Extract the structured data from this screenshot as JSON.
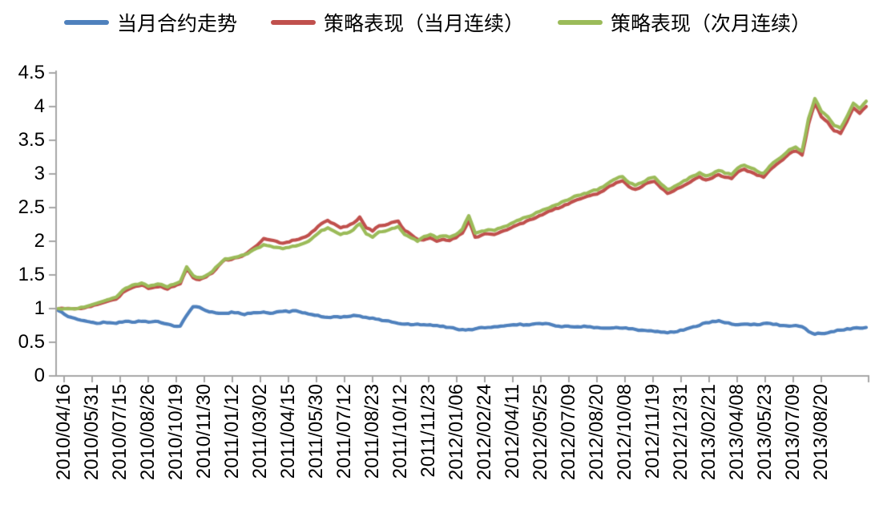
{
  "chart_data": {
    "type": "line",
    "title": "",
    "xlabel": "",
    "ylabel": "",
    "grid": false,
    "legend_position": "top",
    "axis_color": "#A6A6A6",
    "text_color": "#000000",
    "background": "#FFFFFF",
    "ylim": [
      0,
      4.5
    ],
    "y_ticks": [
      "0",
      "0.5",
      "1",
      "1.5",
      "2",
      "2.5",
      "3",
      "3.5",
      "4",
      "4.5"
    ],
    "x_tick_labels": [
      "2010/04/16",
      "2010/05/31",
      "2010/07/15",
      "2010/08/26",
      "2010/10/19",
      "2010/11/30",
      "2011/01/12",
      "2011/03/02",
      "2011/04/15",
      "2011/05/30",
      "2011/07/12",
      "2011/08/23",
      "2011/10/12",
      "2011/11/23",
      "2012/01/06",
      "2012/02/24",
      "2012/04/11",
      "2012/05/25",
      "2012/07/09",
      "2012/08/20",
      "2012/10/08",
      "2012/11/19",
      "2012/12/31",
      "2013/02/21",
      "2013/04/08",
      "2013/05/23",
      "2013/07/09",
      "2013/08/20"
    ],
    "x_range_note": "series values are sampled uniformly across the x axis from 2010/04/16 to the chart end",
    "series": [
      {
        "name": "当月合约走势",
        "color": "#4F81BD",
        "values": [
          0.97,
          0.91,
          0.87,
          0.84,
          0.82,
          0.8,
          0.78,
          0.8,
          0.79,
          0.78,
          0.8,
          0.81,
          0.8,
          0.81,
          0.8,
          0.81,
          0.79,
          0.77,
          0.74,
          0.74,
          0.9,
          1.03,
          1.02,
          0.97,
          0.95,
          0.93,
          0.93,
          0.95,
          0.94,
          0.91,
          0.93,
          0.94,
          0.95,
          0.93,
          0.95,
          0.96,
          0.95,
          0.97,
          0.94,
          0.92,
          0.9,
          0.88,
          0.87,
          0.88,
          0.87,
          0.88,
          0.9,
          0.89,
          0.87,
          0.86,
          0.84,
          0.82,
          0.8,
          0.78,
          0.77,
          0.76,
          0.77,
          0.76,
          0.76,
          0.75,
          0.74,
          0.72,
          0.7,
          0.69,
          0.69,
          0.7,
          0.72,
          0.72,
          0.73,
          0.74,
          0.75,
          0.76,
          0.77,
          0.76,
          0.77,
          0.78,
          0.78,
          0.76,
          0.74,
          0.74,
          0.73,
          0.73,
          0.74,
          0.73,
          0.72,
          0.71,
          0.71,
          0.72,
          0.71,
          0.7,
          0.69,
          0.68,
          0.67,
          0.66,
          0.65,
          0.64,
          0.65,
          0.68,
          0.7,
          0.73,
          0.75,
          0.79,
          0.81,
          0.82,
          0.79,
          0.77,
          0.76,
          0.77,
          0.76,
          0.76,
          0.78,
          0.78,
          0.77,
          0.75,
          0.74,
          0.75,
          0.73,
          0.66,
          0.62,
          0.63,
          0.64,
          0.66,
          0.68,
          0.7,
          0.71,
          0.71,
          0.72
        ]
      },
      {
        "name": "策略表现（当月连续）",
        "color": "#C0504D",
        "values": [
          1.0,
          1.0,
          1.0,
          1.0,
          1.01,
          1.03,
          1.06,
          1.09,
          1.12,
          1.14,
          1.24,
          1.29,
          1.33,
          1.35,
          1.3,
          1.32,
          1.33,
          1.29,
          1.33,
          1.37,
          1.59,
          1.46,
          1.43,
          1.47,
          1.53,
          1.64,
          1.73,
          1.73,
          1.76,
          1.8,
          1.87,
          1.94,
          2.04,
          2.02,
          2.0,
          1.97,
          1.99,
          2.02,
          2.05,
          2.09,
          2.17,
          2.26,
          2.31,
          2.26,
          2.2,
          2.22,
          2.27,
          2.36,
          2.2,
          2.15,
          2.23,
          2.24,
          2.28,
          2.3,
          2.16,
          2.1,
          2.03,
          2.02,
          2.05,
          2.0,
          2.03,
          2.01,
          2.05,
          2.12,
          2.31,
          2.06,
          2.09,
          2.11,
          2.1,
          2.14,
          2.17,
          2.22,
          2.26,
          2.3,
          2.33,
          2.38,
          2.42,
          2.46,
          2.49,
          2.54,
          2.58,
          2.62,
          2.65,
          2.68,
          2.7,
          2.75,
          2.82,
          2.87,
          2.9,
          2.81,
          2.77,
          2.81,
          2.87,
          2.89,
          2.79,
          2.71,
          2.75,
          2.8,
          2.85,
          2.91,
          2.96,
          2.91,
          2.94,
          2.99,
          2.95,
          2.93,
          3.03,
          3.07,
          3.03,
          2.98,
          2.95,
          3.06,
          3.14,
          3.21,
          3.3,
          3.34,
          3.28,
          3.74,
          4.05,
          3.85,
          3.77,
          3.64,
          3.6,
          3.78,
          3.98,
          3.9,
          4.0
        ]
      },
      {
        "name": "策略表现（次月连续）",
        "color": "#9BBB59",
        "values": [
          1.0,
          1.0,
          1.0,
          1.0,
          1.02,
          1.05,
          1.08,
          1.11,
          1.14,
          1.17,
          1.27,
          1.32,
          1.36,
          1.38,
          1.33,
          1.35,
          1.36,
          1.32,
          1.36,
          1.4,
          1.62,
          1.49,
          1.46,
          1.49,
          1.55,
          1.65,
          1.74,
          1.75,
          1.77,
          1.8,
          1.85,
          1.9,
          1.95,
          1.93,
          1.91,
          1.89,
          1.91,
          1.93,
          1.96,
          2.0,
          2.08,
          2.16,
          2.2,
          2.15,
          2.1,
          2.12,
          2.17,
          2.26,
          2.11,
          2.06,
          2.14,
          2.15,
          2.19,
          2.22,
          2.1,
          2.05,
          2.0,
          2.07,
          2.1,
          2.05,
          2.08,
          2.06,
          2.1,
          2.18,
          2.38,
          2.12,
          2.15,
          2.17,
          2.16,
          2.2,
          2.23,
          2.28,
          2.32,
          2.36,
          2.39,
          2.44,
          2.48,
          2.52,
          2.55,
          2.6,
          2.64,
          2.68,
          2.71,
          2.74,
          2.76,
          2.81,
          2.88,
          2.93,
          2.96,
          2.87,
          2.83,
          2.87,
          2.93,
          2.95,
          2.85,
          2.77,
          2.81,
          2.86,
          2.91,
          2.97,
          3.02,
          2.97,
          3.0,
          3.05,
          3.01,
          2.99,
          3.09,
          3.13,
          3.09,
          3.04,
          3.01,
          3.12,
          3.2,
          3.27,
          3.36,
          3.4,
          3.34,
          3.82,
          4.12,
          3.93,
          3.85,
          3.72,
          3.68,
          3.85,
          4.05,
          3.97,
          4.08
        ]
      }
    ]
  }
}
